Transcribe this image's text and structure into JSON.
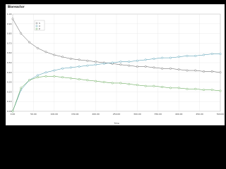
{
  "chart_data": {
    "type": "line",
    "title": "Bioreactor",
    "x_label": "Time",
    "x": [
      0,
      20,
      40,
      60,
      80,
      100,
      120,
      140,
      160,
      180,
      200,
      220,
      240,
      260,
      280,
      300,
      320,
      340,
      360,
      380,
      400,
      420,
      440,
      460,
      480,
      500
    ],
    "series": [
      {
        "name": "S",
        "color": "#555555",
        "values": [
          0.95,
          0.8,
          0.71,
          0.65,
          0.61,
          0.58,
          0.56,
          0.54,
          0.53,
          0.52,
          0.51,
          0.5,
          0.49,
          0.48,
          0.47,
          0.46,
          0.46,
          0.45,
          0.44,
          0.44,
          0.43,
          0.42,
          0.42,
          0.41,
          0.41,
          0.4
        ]
      },
      {
        "name": "X",
        "color": "#3a8fa8",
        "values": [
          0,
          0.22,
          0.32,
          0.37,
          0.4,
          0.42,
          0.44,
          0.45,
          0.46,
          0.47,
          0.48,
          0.49,
          0.5,
          0.51,
          0.51,
          0.52,
          0.53,
          0.54,
          0.55,
          0.55,
          0.56,
          0.57,
          0.57,
          0.58,
          0.59,
          0.59
        ]
      },
      {
        "name": "P",
        "color": "#4a9a3a",
        "values": [
          0,
          0.24,
          0.32,
          0.35,
          0.36,
          0.36,
          0.35,
          0.34,
          0.33,
          0.32,
          0.31,
          0.3,
          0.29,
          0.29,
          0.28,
          0.27,
          0.26,
          0.26,
          0.25,
          0.24,
          0.24,
          0.23,
          0.23,
          0.22,
          0.22,
          0.21
        ]
      }
    ],
    "xlim": [
      0,
      500
    ],
    "ylim": [
      0,
      1
    ],
    "xticks": [
      {
        "value": 0,
        "label": "0.00"
      },
      {
        "value": 50,
        "label": "50.00"
      },
      {
        "value": 100,
        "label": "100.00"
      },
      {
        "value": 150,
        "label": "150.00"
      },
      {
        "value": 200,
        "label": "200.00"
      },
      {
        "value": 250,
        "label": "250.00"
      },
      {
        "value": 300,
        "label": "300.00"
      },
      {
        "value": 350,
        "label": "350.00"
      },
      {
        "value": 400,
        "label": "400.00"
      },
      {
        "value": 450,
        "label": "450.00"
      },
      {
        "value": 500,
        "label": "500.00"
      }
    ],
    "yticks": [
      {
        "value": 0,
        "label": "0.00"
      },
      {
        "value": 0.1,
        "label": "0.10"
      },
      {
        "value": 0.2,
        "label": "0.20"
      },
      {
        "value": 0.3,
        "label": "0.30"
      },
      {
        "value": 0.4,
        "label": "0.40"
      },
      {
        "value": 0.5,
        "label": "0.50"
      },
      {
        "value": 0.6,
        "label": "0.60"
      },
      {
        "value": 0.7,
        "label": "0.70"
      },
      {
        "value": 0.8,
        "label": "0.80"
      },
      {
        "value": 0.9,
        "label": "0.90"
      },
      {
        "value": 1,
        "label": "1.00"
      }
    ],
    "grid": true
  }
}
